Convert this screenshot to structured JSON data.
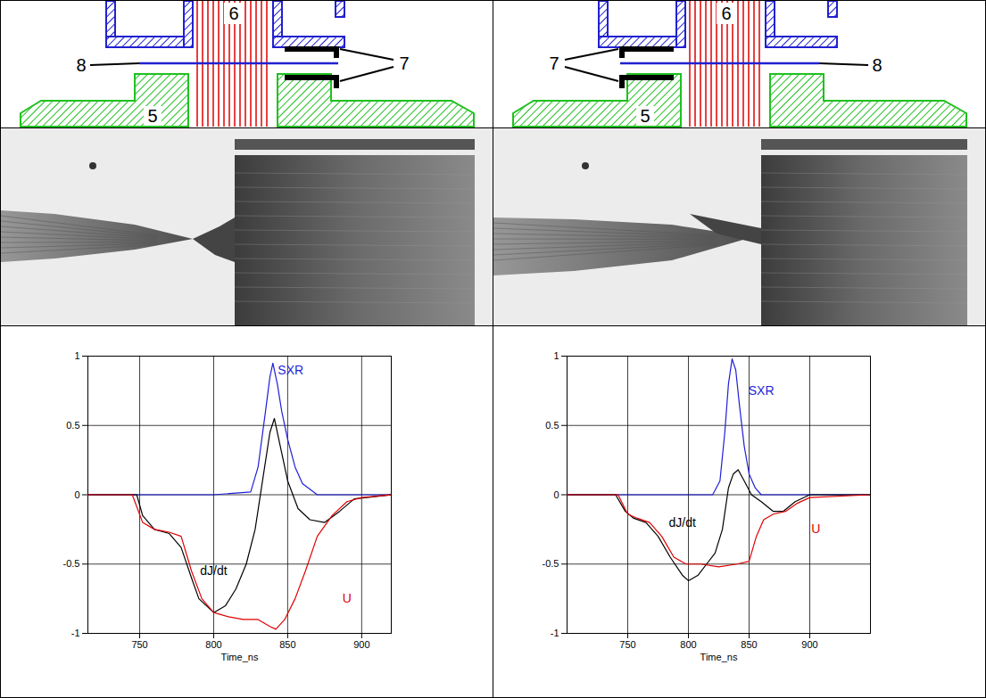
{
  "diagrams": [
    {
      "top_electrode": "6",
      "bottom_electrode": "5",
      "insert": "7",
      "foil": "8",
      "insert_side": "right"
    },
    {
      "top_electrode": "6",
      "bottom_electrode": "5",
      "insert": "7",
      "foil": "8",
      "insert_side": "left"
    }
  ],
  "chart_data": [
    {
      "type": "line",
      "xlabel": "Time_ns",
      "xlim": [
        715,
        920
      ],
      "xticks": [
        750,
        800,
        850,
        900
      ],
      "ylim": [
        -1,
        1
      ],
      "yticks": [
        -1,
        -0.5,
        0,
        0.5,
        1
      ],
      "grid": true,
      "series": [
        {
          "name": "SXR",
          "color": "#1f1fd8",
          "x": [
            715,
            800,
            825,
            830,
            835,
            838,
            840,
            843,
            846,
            850,
            855,
            860,
            870,
            920
          ],
          "values": [
            0,
            0,
            0.02,
            0.2,
            0.6,
            0.85,
            0.95,
            0.8,
            0.6,
            0.4,
            0.2,
            0.08,
            0,
            0
          ]
        },
        {
          "name": "dJ/dt",
          "color": "#000000",
          "x": [
            715,
            748,
            752,
            760,
            770,
            778,
            785,
            790,
            800,
            808,
            815,
            822,
            828,
            833,
            838,
            841,
            845,
            850,
            857,
            865,
            875,
            885,
            895,
            920
          ],
          "values": [
            0,
            0,
            -0.15,
            -0.25,
            -0.28,
            -0.38,
            -0.6,
            -0.75,
            -0.85,
            -0.8,
            -0.68,
            -0.5,
            -0.25,
            0.1,
            0.45,
            0.55,
            0.35,
            0.1,
            -0.1,
            -0.18,
            -0.2,
            -0.12,
            -0.03,
            0
          ]
        },
        {
          "name": "U",
          "color": "#e00000",
          "x": [
            715,
            745,
            752,
            760,
            770,
            778,
            785,
            792,
            800,
            810,
            820,
            830,
            838,
            842,
            848,
            855,
            862,
            870,
            880,
            890,
            900,
            920
          ],
          "values": [
            0,
            0,
            -0.2,
            -0.25,
            -0.27,
            -0.3,
            -0.55,
            -0.75,
            -0.85,
            -0.88,
            -0.9,
            -0.9,
            -0.95,
            -0.97,
            -0.9,
            -0.75,
            -0.55,
            -0.3,
            -0.15,
            -0.05,
            -0.02,
            0
          ]
        }
      ],
      "annotations": [
        {
          "text": "SXR",
          "x": 852,
          "y": 0.9
        },
        {
          "text": "dJ/dt",
          "x": 800,
          "y": -0.55
        },
        {
          "text": "U",
          "x": 890,
          "y": -0.75
        }
      ]
    },
    {
      "type": "line",
      "xlabel": "Time_ns",
      "xlim": [
        700,
        950
      ],
      "xticks": [
        750,
        800,
        850,
        900
      ],
      "ylim": [
        -1,
        1
      ],
      "yticks": [
        -1,
        -0.5,
        0,
        0.5,
        1
      ],
      "grid": true,
      "series": [
        {
          "name": "SXR",
          "color": "#1f1fd8",
          "x": [
            700,
            820,
            826,
            830,
            833,
            836,
            839,
            842,
            846,
            850,
            855,
            860,
            950
          ],
          "values": [
            0,
            0,
            0.1,
            0.45,
            0.8,
            0.98,
            0.9,
            0.65,
            0.35,
            0.15,
            0.05,
            0,
            0
          ]
        },
        {
          "name": "dJ/dt",
          "color": "#000000",
          "x": [
            700,
            740,
            748,
            755,
            765,
            775,
            785,
            795,
            800,
            808,
            815,
            822,
            828,
            833,
            837,
            841,
            846,
            852,
            860,
            870,
            878,
            888,
            900,
            950
          ],
          "values": [
            0,
            0,
            -0.12,
            -0.17,
            -0.2,
            -0.3,
            -0.45,
            -0.58,
            -0.62,
            -0.58,
            -0.5,
            -0.42,
            -0.25,
            0.05,
            0.15,
            0.18,
            0.1,
            0,
            -0.05,
            -0.12,
            -0.12,
            -0.05,
            0,
            0
          ]
        },
        {
          "name": "U",
          "color": "#e00000",
          "x": [
            700,
            742,
            750,
            758,
            768,
            778,
            788,
            798,
            810,
            825,
            840,
            850,
            856,
            862,
            870,
            880,
            890,
            900,
            950
          ],
          "values": [
            0,
            0,
            -0.14,
            -0.17,
            -0.2,
            -0.3,
            -0.45,
            -0.5,
            -0.5,
            -0.52,
            -0.5,
            -0.48,
            -0.3,
            -0.18,
            -0.14,
            -0.12,
            -0.06,
            -0.02,
            0
          ]
        }
      ],
      "annotations": [
        {
          "text": "SXR",
          "x": 860,
          "y": 0.75
        },
        {
          "text": "dJ/dt",
          "x": 795,
          "y": -0.2
        },
        {
          "text": "U",
          "x": 905,
          "y": -0.25
        }
      ]
    }
  ]
}
